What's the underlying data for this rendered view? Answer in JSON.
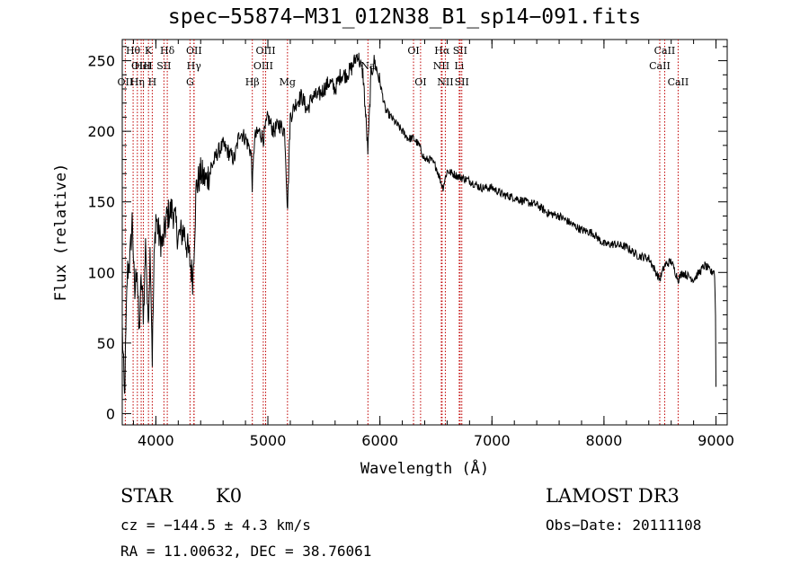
{
  "chart_data": {
    "type": "line",
    "title": "spec−55874−M31_012N38_B1_sp14−091.fits",
    "xlabel": "Wavelength (Å)",
    "ylabel": "Flux (relative)",
    "xlim": [
      3700,
      9100
    ],
    "ylim": [
      -8,
      265
    ],
    "xticks": [
      4000,
      5000,
      6000,
      7000,
      8000,
      9000
    ],
    "yticks": [
      0,
      50,
      100,
      150,
      200,
      250
    ],
    "series": [
      {
        "name": "spectrum",
        "x": [
          3700,
          3720,
          3745,
          3770,
          3790,
          3810,
          3830,
          3850,
          3870,
          3890,
          3910,
          3930,
          3950,
          3968,
          3985,
          4000,
          4030,
          4060,
          4100,
          4150,
          4200,
          4250,
          4300,
          4330,
          4360,
          4400,
          4450,
          4500,
          4550,
          4600,
          4650,
          4700,
          4750,
          4800,
          4850,
          4861,
          4880,
          4920,
          4960,
          5000,
          5050,
          5100,
          5150,
          5175,
          5200,
          5250,
          5300,
          5350,
          5400,
          5450,
          5500,
          5550,
          5600,
          5650,
          5700,
          5750,
          5800,
          5850,
          5893,
          5920,
          5950,
          6000,
          6050,
          6100,
          6150,
          6200,
          6250,
          6300,
          6350,
          6400,
          6450,
          6500,
          6563,
          6600,
          6650,
          6700,
          6800,
          6900,
          7000,
          7100,
          7200,
          7300,
          7400,
          7500,
          7600,
          7700,
          7800,
          7900,
          8000,
          8100,
          8200,
          8300,
          8400,
          8498,
          8542,
          8600,
          8662,
          8700,
          8800,
          8900,
          8960,
          8985,
          8995,
          9000
        ],
        "values": [
          60,
          10,
          100,
          110,
          140,
          80,
          110,
          55,
          95,
          70,
          125,
          60,
          120,
          40,
          110,
          140,
          125,
          120,
          140,
          145,
          125,
          130,
          110,
          95,
          160,
          170,
          165,
          175,
          185,
          190,
          185,
          180,
          200,
          195,
          185,
          160,
          195,
          200,
          195,
          210,
          200,
          205,
          200,
          145,
          210,
          220,
          225,
          215,
          225,
          225,
          230,
          235,
          230,
          240,
          240,
          245,
          255,
          240,
          185,
          240,
          250,
          235,
          215,
          210,
          205,
          200,
          195,
          195,
          190,
          180,
          180,
          175,
          160,
          172,
          170,
          168,
          165,
          160,
          160,
          155,
          153,
          150,
          148,
          142,
          140,
          135,
          130,
          128,
          120,
          120,
          118,
          112,
          110,
          95,
          105,
          108,
          95,
          100,
          95,
          105,
          100,
          102,
          80,
          20
        ]
      }
    ],
    "lines": [
      {
        "label": "Hθ",
        "x": 3797,
        "row": 0
      },
      {
        "label": "K",
        "x": 3934,
        "row": 0
      },
      {
        "label": "Hδ",
        "x": 4102,
        "row": 0
      },
      {
        "label": "OII",
        "x": 4341,
        "row": 0
      },
      {
        "label": "OIII",
        "x": 4980,
        "row": 0
      },
      {
        "label": "OI",
        "x": 6300,
        "row": 0
      },
      {
        "label": "Hα",
        "x": 6555,
        "row": 0
      },
      {
        "label": "SII",
        "x": 6716,
        "row": 0
      },
      {
        "label": "CaII",
        "x": 8542,
        "row": 0
      },
      {
        "label": "OIII",
        "x": 3869,
        "row": 1
      },
      {
        "label": "HeI",
        "x": 3889,
        "row": 1
      },
      {
        "label": "SII",
        "x": 4072,
        "row": 1
      },
      {
        "label": "Hγ",
        "x": 4340,
        "row": 1
      },
      {
        "label": "OIII",
        "x": 4959,
        "row": 1
      },
      {
        "label": "Na",
        "x": 5893,
        "row": 1
      },
      {
        "label": "NII",
        "x": 6548,
        "row": 1
      },
      {
        "label": "Li",
        "x": 6708,
        "row": 1
      },
      {
        "label": "CaII",
        "x": 8498,
        "row": 1
      },
      {
        "label": "OII",
        "x": 3727,
        "row": 2
      },
      {
        "label": "Hη",
        "x": 3835,
        "row": 2
      },
      {
        "label": "H",
        "x": 3968,
        "row": 2
      },
      {
        "label": "G",
        "x": 4305,
        "row": 2
      },
      {
        "label": "Hβ",
        "x": 4861,
        "row": 2
      },
      {
        "label": "Mg",
        "x": 5175,
        "row": 2
      },
      {
        "label": "OI",
        "x": 6363,
        "row": 2
      },
      {
        "label": "NII",
        "x": 6584,
        "row": 2
      },
      {
        "label": "SII",
        "x": 6731,
        "row": 2
      },
      {
        "label": "CaII",
        "x": 8662,
        "row": 2
      }
    ]
  },
  "info": {
    "class": "STAR",
    "subclass": "K0",
    "survey": "LAMOST DR3",
    "cz": "cz = −144.5 ± 4.3 km/s",
    "obs_date": "Obs−Date: 20111108",
    "radec": "RA =  11.00632, DEC =  38.76061"
  }
}
